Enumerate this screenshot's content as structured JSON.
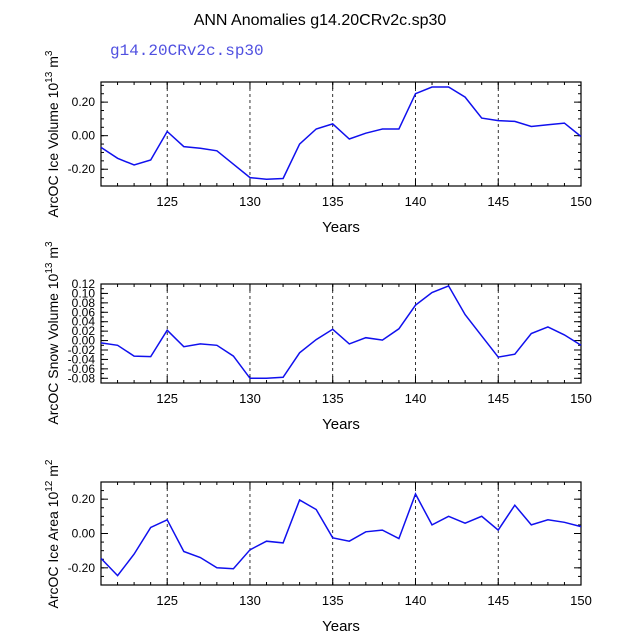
{
  "title": "ANN Anomalies g14.20CRv2c.sp30",
  "legend_label": "g14.20CRv2c.sp30",
  "colors": {
    "series": "#1010ee",
    "axis": "#000000",
    "legend": "#5050e0",
    "grid": "#000000"
  },
  "chart_data": [
    {
      "type": "line",
      "ylabel": "ArcOC Ice Volume 10",
      "ylabel_exp": "13",
      "ylabel_unit": "m",
      "ylabel_unit_exp": "3",
      "xlabel": "Years",
      "xlim": [
        121,
        150
      ],
      "ylim": [
        -0.3,
        0.32
      ],
      "xticks": [
        125,
        130,
        135,
        140,
        145,
        150
      ],
      "xtick_labels": [
        "125",
        "130",
        "135",
        "140",
        "145",
        "150"
      ],
      "yticks": [
        0.2,
        0.0,
        -0.2
      ],
      "ytick_labels": [
        "0.20",
        "0.00",
        "-0.20"
      ],
      "x": [
        121,
        122,
        123,
        124,
        125,
        126,
        127,
        128,
        129,
        130,
        131,
        132,
        133,
        134,
        135,
        136,
        137,
        138,
        139,
        140,
        141,
        142,
        143,
        144,
        145,
        146,
        147,
        148,
        149,
        150
      ],
      "values": [
        -0.07,
        -0.135,
        -0.175,
        -0.145,
        0.025,
        -0.065,
        -0.075,
        -0.09,
        -0.17,
        -0.25,
        -0.26,
        -0.255,
        -0.05,
        0.04,
        0.07,
        -0.02,
        0.015,
        0.04,
        0.04,
        0.25,
        0.29,
        0.29,
        0.23,
        0.105,
        0.09,
        0.085,
        0.055,
        0.065,
        0.075,
        -0.005
      ]
    },
    {
      "type": "line",
      "ylabel": "ArcOC Snow Volume 10",
      "ylabel_exp": "13",
      "ylabel_unit": "m",
      "ylabel_unit_exp": "3",
      "xlabel": "Years",
      "xlim": [
        121,
        150
      ],
      "ylim": [
        -0.09,
        0.12
      ],
      "xticks": [
        125,
        130,
        135,
        140,
        145,
        150
      ],
      "xtick_labels": [
        "125",
        "130",
        "135",
        "140",
        "145",
        "150"
      ],
      "yticks": [
        0.12,
        0.1,
        0.08,
        0.06,
        0.04,
        0.02,
        0.0,
        -0.02,
        -0.04,
        -0.06,
        -0.08
      ],
      "ytick_labels": [
        "0.12",
        "0.10",
        "0.08",
        "0.06",
        "0.04",
        "0.02",
        "0.00",
        "-0.02",
        "-0.04",
        "-0.06",
        "-0.08"
      ],
      "x": [
        121,
        122,
        123,
        124,
        125,
        126,
        127,
        128,
        129,
        130,
        131,
        132,
        133,
        134,
        135,
        136,
        137,
        138,
        139,
        140,
        141,
        142,
        143,
        144,
        145,
        146,
        147,
        148,
        149,
        150
      ],
      "values": [
        -0.005,
        -0.01,
        -0.033,
        -0.034,
        0.022,
        -0.013,
        -0.007,
        -0.01,
        -0.033,
        -0.08,
        -0.08,
        -0.078,
        -0.026,
        0.002,
        0.024,
        -0.007,
        0.006,
        0.001,
        0.025,
        0.075,
        0.102,
        0.116,
        0.055,
        0.01,
        -0.035,
        -0.029,
        0.015,
        0.029,
        0.012,
        -0.01
      ]
    },
    {
      "type": "line",
      "ylabel": "ArcOC Ice Area 10",
      "ylabel_exp": "12",
      "ylabel_unit": "m",
      "ylabel_unit_exp": "2",
      "xlabel": "Years",
      "xlim": [
        121,
        150
      ],
      "ylim": [
        -0.3,
        0.3
      ],
      "xticks": [
        125,
        130,
        135,
        140,
        145,
        150
      ],
      "xtick_labels": [
        "125",
        "130",
        "135",
        "140",
        "145",
        "150"
      ],
      "yticks": [
        0.2,
        0.0,
        -0.2
      ],
      "ytick_labels": [
        "0.20",
        "0.00",
        "-0.20"
      ],
      "x": [
        121,
        122,
        123,
        124,
        125,
        126,
        127,
        128,
        129,
        130,
        131,
        132,
        133,
        134,
        135,
        136,
        137,
        138,
        139,
        140,
        141,
        142,
        143,
        144,
        145,
        146,
        147,
        148,
        149,
        150
      ],
      "values": [
        -0.145,
        -0.245,
        -0.12,
        0.035,
        0.08,
        -0.105,
        -0.14,
        -0.2,
        -0.205,
        -0.095,
        -0.045,
        -0.055,
        0.195,
        0.14,
        -0.025,
        -0.045,
        0.01,
        0.02,
        -0.03,
        0.23,
        0.05,
        0.1,
        0.06,
        0.1,
        0.02,
        0.165,
        0.05,
        0.08,
        0.065,
        0.04
      ]
    }
  ]
}
